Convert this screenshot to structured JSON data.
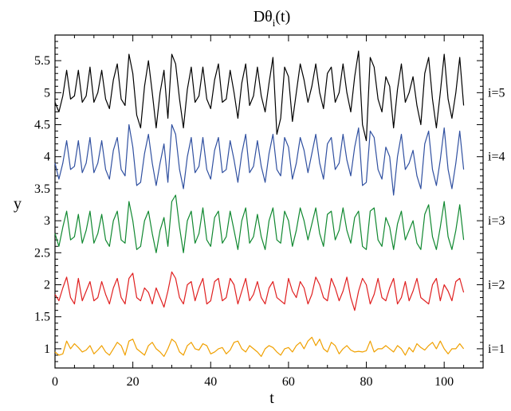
{
  "chart_data": {
    "type": "line",
    "title_main": "Dθ",
    "title_sub": "i",
    "title_tail": "(t)",
    "xlabel": "t",
    "ylabel": "y",
    "xlim": [
      0,
      110
    ],
    "ylim": [
      0.7,
      5.9
    ],
    "xticks": [
      0,
      20,
      40,
      60,
      80,
      100
    ],
    "xtick_labels": [
      "0",
      "20",
      "40",
      "60",
      "80",
      "100"
    ],
    "yticks": [
      1,
      1.5,
      2,
      2.5,
      3,
      3.5,
      4,
      4.5,
      5,
      5.5
    ],
    "ytick_labels": [
      "1",
      "1.5",
      "2",
      "2.5",
      "3",
      "3.5",
      "4",
      "4.5",
      "5",
      "5.5"
    ],
    "grid": false,
    "series": [
      {
        "name": "i=1",
        "color": "#f0a000",
        "x": [
          0,
          1,
          2,
          3,
          4,
          5,
          6,
          7,
          8,
          9,
          10,
          11,
          12,
          13,
          14,
          15,
          16,
          17,
          18,
          19,
          20,
          21,
          22,
          23,
          24,
          25,
          26,
          27,
          28,
          29,
          30,
          31,
          32,
          33,
          34,
          35,
          36,
          37,
          38,
          39,
          40,
          41,
          42,
          43,
          44,
          45,
          46,
          47,
          48,
          49,
          50,
          51,
          52,
          53,
          54,
          55,
          56,
          57,
          58,
          59,
          60,
          61,
          62,
          63,
          64,
          65,
          66,
          67,
          68,
          69,
          70,
          71,
          72,
          73,
          74,
          75,
          76,
          77,
          78,
          79,
          80,
          81,
          82,
          83,
          84,
          85,
          86,
          87,
          88,
          89,
          90,
          91,
          92,
          93,
          94,
          95,
          96,
          97,
          98,
          99,
          100,
          101,
          102,
          103,
          104,
          105
        ],
        "y": [
          0.95,
          0.9,
          0.92,
          1.12,
          1.0,
          1.08,
          1.02,
          0.95,
          0.98,
          1.05,
          0.92,
          0.98,
          1.05,
          0.95,
          0.9,
          1.0,
          1.1,
          1.05,
          0.9,
          1.12,
          1.15,
          1.0,
          0.95,
          0.9,
          1.05,
          1.1,
          1.0,
          0.95,
          0.88,
          1.0,
          1.15,
          1.1,
          0.95,
          0.9,
          1.05,
          1.1,
          1.0,
          0.98,
          1.08,
          1.05,
          0.92,
          0.95,
          1.0,
          1.02,
          0.92,
          0.98,
          1.1,
          1.12,
          1.0,
          0.95,
          1.05,
          1.0,
          0.95,
          0.88,
          1.0,
          1.05,
          1.02,
          0.95,
          0.9,
          1.0,
          1.02,
          0.95,
          1.05,
          1.1,
          1.0,
          1.12,
          1.18,
          1.05,
          1.15,
          1.0,
          0.95,
          1.1,
          1.05,
          0.92,
          1.0,
          1.05,
          0.98,
          0.95,
          0.96,
          0.95,
          0.97,
          1.12,
          0.95,
          1.0,
          1.0,
          1.05,
          1.0,
          0.95,
          1.05,
          1.0,
          0.9,
          1.02,
          0.95,
          1.08,
          1.02,
          0.98,
          1.05,
          1.1,
          1.0,
          1.12,
          1.0,
          0.92,
          1.0,
          1.0,
          1.08,
          1.0
        ]
      },
      {
        "name": "i=2",
        "color": "#e02020",
        "x": [
          0,
          1,
          2,
          3,
          4,
          5,
          6,
          7,
          8,
          9,
          10,
          11,
          12,
          13,
          14,
          15,
          16,
          17,
          18,
          19,
          20,
          21,
          22,
          23,
          24,
          25,
          26,
          27,
          28,
          29,
          30,
          31,
          32,
          33,
          34,
          35,
          36,
          37,
          38,
          39,
          40,
          41,
          42,
          43,
          44,
          45,
          46,
          47,
          48,
          49,
          50,
          51,
          52,
          53,
          54,
          55,
          56,
          57,
          58,
          59,
          60,
          61,
          62,
          63,
          64,
          65,
          66,
          67,
          68,
          69,
          70,
          71,
          72,
          73,
          74,
          75,
          76,
          77,
          78,
          79,
          80,
          81,
          82,
          83,
          84,
          85,
          86,
          87,
          88,
          89,
          90,
          91,
          92,
          93,
          94,
          95,
          96,
          97,
          98,
          99,
          100,
          101,
          102,
          103,
          104,
          105
        ],
        "y": [
          1.85,
          1.75,
          1.95,
          2.12,
          1.8,
          1.7,
          2.1,
          1.75,
          1.9,
          2.05,
          1.75,
          1.8,
          2.05,
          1.85,
          1.7,
          1.95,
          2.1,
          1.8,
          1.7,
          2.1,
          2.18,
          1.8,
          1.75,
          1.95,
          1.88,
          1.7,
          1.95,
          1.8,
          1.65,
          1.9,
          2.2,
          2.1,
          1.8,
          1.7,
          2.0,
          2.05,
          1.75,
          1.95,
          2.1,
          1.7,
          1.75,
          2.05,
          2.1,
          1.75,
          1.8,
          2.1,
          2.0,
          1.7,
          1.9,
          2.1,
          1.75,
          1.85,
          2.05,
          1.8,
          1.7,
          1.95,
          2.05,
          1.8,
          1.75,
          1.7,
          2.1,
          1.9,
          1.8,
          2.05,
          1.95,
          1.7,
          1.85,
          2.12,
          2.0,
          1.8,
          1.75,
          2.1,
          1.95,
          1.75,
          1.9,
          2.12,
          1.8,
          1.6,
          1.9,
          2.1,
          2.0,
          1.7,
          1.85,
          2.1,
          1.8,
          1.75,
          1.95,
          2.1,
          1.7,
          1.8,
          2.05,
          1.75,
          1.9,
          2.1,
          1.8,
          1.75,
          1.7,
          2.0,
          2.1,
          1.75,
          2.0,
          1.9,
          1.75,
          2.05,
          2.1,
          1.88
        ]
      },
      {
        "name": "i=3",
        "color": "#108830",
        "x": [
          0,
          1,
          2,
          3,
          4,
          5,
          6,
          7,
          8,
          9,
          10,
          11,
          12,
          13,
          14,
          15,
          16,
          17,
          18,
          19,
          20,
          21,
          22,
          23,
          24,
          25,
          26,
          27,
          28,
          29,
          30,
          31,
          32,
          33,
          34,
          35,
          36,
          37,
          38,
          39,
          40,
          41,
          42,
          43,
          44,
          45,
          46,
          47,
          48,
          49,
          50,
          51,
          52,
          53,
          54,
          55,
          56,
          57,
          58,
          59,
          60,
          61,
          62,
          63,
          64,
          65,
          66,
          67,
          68,
          69,
          70,
          71,
          72,
          73,
          74,
          75,
          76,
          77,
          78,
          79,
          80,
          81,
          82,
          83,
          84,
          85,
          86,
          87,
          88,
          89,
          90,
          91,
          92,
          93,
          94,
          95,
          96,
          97,
          98,
          99,
          100,
          101,
          102,
          103,
          104,
          105
        ],
        "y": [
          2.8,
          2.6,
          2.9,
          3.15,
          2.7,
          2.75,
          3.1,
          2.65,
          2.85,
          3.15,
          2.65,
          2.8,
          3.1,
          2.7,
          2.6,
          3.0,
          3.15,
          2.7,
          2.65,
          3.3,
          3.0,
          2.55,
          2.6,
          3.0,
          3.15,
          2.8,
          2.5,
          2.85,
          3.05,
          2.6,
          3.3,
          3.4,
          2.9,
          2.5,
          3.0,
          3.15,
          2.65,
          2.8,
          3.2,
          2.7,
          2.6,
          3.05,
          3.15,
          2.65,
          2.75,
          3.15,
          2.85,
          2.55,
          3.0,
          3.2,
          2.65,
          2.75,
          3.1,
          2.75,
          2.55,
          3.0,
          3.2,
          2.7,
          2.65,
          3.15,
          3.0,
          2.6,
          2.85,
          3.2,
          3.0,
          2.7,
          2.95,
          3.2,
          2.8,
          2.6,
          3.1,
          3.15,
          2.7,
          2.85,
          3.2,
          2.85,
          2.65,
          3.05,
          3.15,
          2.6,
          2.55,
          3.15,
          3.2,
          2.7,
          2.6,
          3.05,
          2.9,
          2.55,
          2.95,
          3.15,
          2.7,
          2.85,
          3.0,
          2.65,
          2.55,
          3.1,
          3.25,
          2.75,
          2.55,
          2.9,
          3.3,
          2.75,
          2.55,
          2.85,
          3.25,
          2.7
        ]
      },
      {
        "name": "i=4",
        "color": "#3050a0",
        "x": [
          0,
          1,
          2,
          3,
          4,
          5,
          6,
          7,
          8,
          9,
          10,
          11,
          12,
          13,
          14,
          15,
          16,
          17,
          18,
          19,
          20,
          21,
          22,
          23,
          24,
          25,
          26,
          27,
          28,
          29,
          30,
          31,
          32,
          33,
          34,
          35,
          36,
          37,
          38,
          39,
          40,
          41,
          42,
          43,
          44,
          45,
          46,
          47,
          48,
          49,
          50,
          51,
          52,
          53,
          54,
          55,
          56,
          57,
          58,
          59,
          60,
          61,
          62,
          63,
          64,
          65,
          66,
          67,
          68,
          69,
          70,
          71,
          72,
          73,
          74,
          75,
          76,
          77,
          78,
          79,
          80,
          81,
          82,
          83,
          84,
          85,
          86,
          87,
          88,
          89,
          90,
          91,
          92,
          93,
          94,
          95,
          96,
          97,
          98,
          99,
          100,
          101,
          102,
          103,
          104,
          105
        ],
        "y": [
          3.9,
          3.65,
          3.9,
          4.25,
          3.8,
          3.85,
          4.25,
          3.75,
          3.9,
          4.3,
          3.75,
          3.9,
          4.25,
          3.8,
          3.65,
          4.1,
          4.3,
          3.8,
          3.7,
          4.5,
          4.15,
          3.55,
          3.6,
          4.05,
          4.35,
          3.9,
          3.55,
          3.9,
          4.2,
          3.6,
          4.5,
          4.35,
          3.8,
          3.5,
          4.0,
          4.3,
          3.75,
          3.85,
          4.3,
          3.8,
          3.65,
          4.1,
          4.3,
          3.75,
          3.8,
          4.25,
          3.95,
          3.6,
          4.05,
          4.35,
          3.75,
          3.85,
          4.25,
          3.85,
          3.6,
          4.05,
          4.35,
          3.8,
          3.7,
          4.3,
          4.15,
          3.65,
          3.9,
          4.3,
          4.1,
          3.75,
          4.05,
          4.35,
          3.9,
          3.65,
          4.2,
          4.3,
          3.8,
          3.9,
          4.35,
          3.95,
          3.7,
          4.15,
          4.45,
          3.55,
          3.6,
          4.4,
          4.3,
          3.8,
          3.65,
          4.15,
          4.0,
          3.4,
          4.0,
          4.35,
          3.8,
          3.9,
          4.1,
          3.7,
          3.5,
          4.2,
          4.4,
          3.8,
          3.55,
          3.95,
          4.45,
          3.8,
          3.5,
          3.9,
          4.4,
          3.8
        ]
      },
      {
        "name": "i=5",
        "color": "#000000",
        "x": [
          0,
          1,
          2,
          3,
          4,
          5,
          6,
          7,
          8,
          9,
          10,
          11,
          12,
          13,
          14,
          15,
          16,
          17,
          18,
          19,
          20,
          21,
          22,
          23,
          24,
          25,
          26,
          27,
          28,
          29,
          30,
          31,
          32,
          33,
          34,
          35,
          36,
          37,
          38,
          39,
          40,
          41,
          42,
          43,
          44,
          45,
          46,
          47,
          48,
          49,
          50,
          51,
          52,
          53,
          54,
          55,
          56,
          57,
          58,
          59,
          60,
          61,
          62,
          63,
          64,
          65,
          66,
          67,
          68,
          69,
          70,
          71,
          72,
          73,
          74,
          75,
          76,
          77,
          78,
          79,
          80,
          81,
          82,
          83,
          84,
          85,
          86,
          87,
          88,
          89,
          90,
          91,
          92,
          93,
          94,
          95,
          96,
          97,
          98,
          99,
          100,
          101,
          102,
          103,
          104,
          105
        ],
        "y": [
          4.85,
          4.7,
          4.95,
          5.35,
          4.9,
          4.95,
          5.35,
          4.85,
          4.95,
          5.4,
          4.85,
          5.0,
          5.35,
          4.9,
          4.75,
          5.2,
          5.45,
          4.9,
          4.8,
          5.6,
          5.3,
          4.65,
          4.45,
          5.1,
          5.5,
          5.0,
          4.45,
          5.0,
          5.35,
          4.6,
          5.6,
          5.45,
          4.9,
          4.45,
          5.05,
          5.4,
          4.85,
          4.95,
          5.4,
          4.9,
          4.75,
          5.2,
          5.45,
          4.85,
          4.9,
          5.35,
          5.0,
          4.6,
          5.15,
          5.45,
          4.8,
          4.95,
          5.4,
          4.95,
          4.7,
          5.15,
          5.55,
          4.35,
          4.6,
          5.4,
          5.25,
          4.55,
          5.0,
          5.45,
          5.2,
          4.85,
          5.1,
          5.45,
          5.0,
          4.75,
          5.3,
          5.4,
          4.85,
          5.0,
          5.45,
          5.0,
          4.7,
          5.25,
          5.65,
          4.5,
          4.25,
          5.55,
          5.4,
          4.9,
          4.7,
          5.25,
          5.1,
          4.45,
          5.05,
          5.45,
          4.85,
          5.0,
          5.25,
          4.8,
          4.5,
          5.3,
          5.55,
          4.9,
          4.45,
          5.0,
          5.6,
          4.9,
          4.6,
          5.0,
          5.55,
          4.8
        ]
      }
    ],
    "annotations": [
      "i=5",
      "i=4",
      "i=3",
      "i=2",
      "i=1"
    ],
    "annotation_y": [
      5.0,
      4.0,
      3.0,
      2.0,
      1.0
    ]
  }
}
